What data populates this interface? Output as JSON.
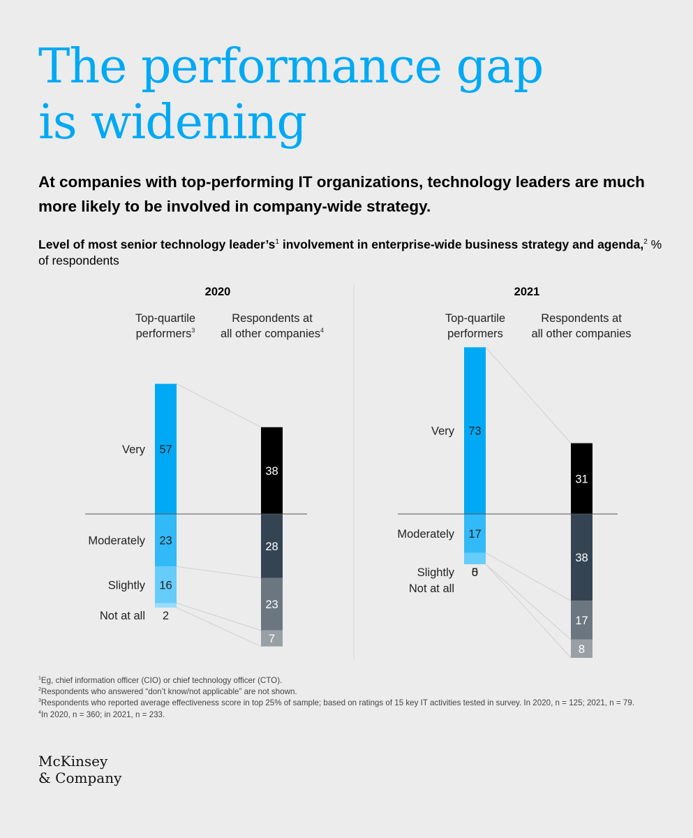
{
  "title_lines": [
    "The performance gap",
    "is widening"
  ],
  "subtitle": "At companies with top-performing IT organizations, technology leaders are much more likely to be involved in company-wide strategy.",
  "chart_heading": {
    "bold_part_1": "Level of most senior technology leader’s",
    "sup_1": "1",
    "bold_part_2": " involvement in enterprise-wide business strategy and agenda,",
    "sup_2": "2",
    "rest": " % of respondents"
  },
  "colors": {
    "title": "#00a9f4",
    "top_very": "#00a9f4",
    "top_moderately": "#32b9f7",
    "top_slightly": "#66ccf9",
    "top_not_at_all": "#99ddfb",
    "other_very": "#000000",
    "other_moderately": "#344452",
    "other_slightly": "#6b7680",
    "other_not_at_all": "#98a0a6",
    "background": "#ececec"
  },
  "chart_data": {
    "type": "bar",
    "subtype": "stacked-diverging",
    "unit": "% of respondents",
    "categories": [
      "Very",
      "Moderately",
      "Slightly",
      "Not at all"
    ],
    "panels": [
      {
        "year": "2020",
        "groups": [
          {
            "label_line1": "Top-quartile",
            "label_line2": "performers",
            "label_sup": "3",
            "values": {
              "Very": 57,
              "Moderately": 23,
              "Slightly": 16,
              "Not at all": 2
            }
          },
          {
            "label_line1": "Respondents at",
            "label_line2": "all other companies",
            "label_sup": "4",
            "values": {
              "Very": 38,
              "Moderately": 28,
              "Slightly": 23,
              "Not at all": 7
            }
          }
        ]
      },
      {
        "year": "2021",
        "groups": [
          {
            "label_line1": "Top-quartile",
            "label_line2": "performers",
            "label_sup": "",
            "values": {
              "Very": 73,
              "Moderately": 17,
              "Slightly": 5,
              "Not at all": 0
            }
          },
          {
            "label_line1": "Respondents at",
            "label_line2": "all other companies",
            "label_sup": "",
            "values": {
              "Very": 31,
              "Moderately": 38,
              "Slightly": 17,
              "Not at all": 8
            }
          }
        ]
      }
    ]
  },
  "footnotes": [
    {
      "num": "1",
      "text": "Eg, chief information officer (CIO) or chief technology officer (CTO)."
    },
    {
      "num": "2",
      "text": "Respondents who answered “don’t know/not applicable” are not shown."
    },
    {
      "num": "3",
      "text": "Respondents who reported average effectiveness score in top 25% of sample; based on ratings of 15 key IT activities tested in survey. In 2020, n = 125; 2021, n = 79."
    },
    {
      "num": "4",
      "text": "In 2020, n = 360; in 2021, n = 233."
    }
  ],
  "logo_lines": [
    "McKinsey",
    "& Company"
  ]
}
